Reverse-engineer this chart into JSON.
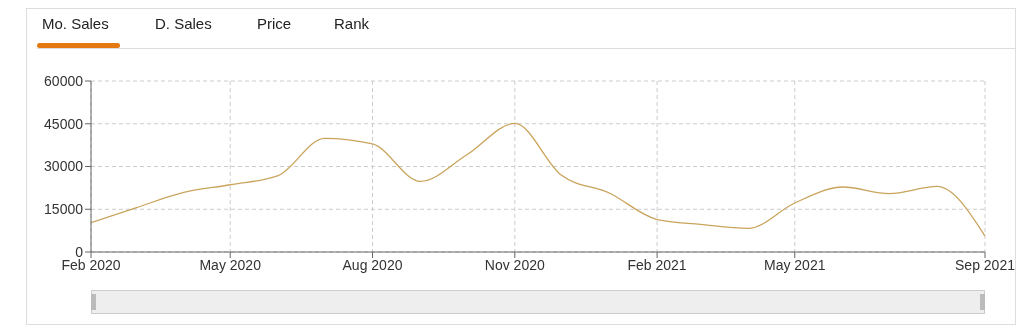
{
  "chart_data": {
    "type": "line",
    "annotations": [
      "Mo. Sales",
      "D. Sales",
      "Price",
      "Rank"
    ],
    "x": [
      "2020-02",
      "2020-03",
      "2020-04",
      "2020-05",
      "2020-06",
      "2020-07",
      "2020-08",
      "2020-09",
      "2020-10",
      "2020-11",
      "2020-12",
      "2021-01",
      "2021-02",
      "2021-03",
      "2021-04",
      "2021-05",
      "2021-06",
      "2021-07",
      "2021-08",
      "2021-09"
    ],
    "series": [
      {
        "color": "#c9a45c",
        "values": [
          10300,
          15500,
          20900,
          23600,
          26800,
          39900,
          37900,
          24800,
          34100,
          45100,
          27000,
          20700,
          11400,
          9700,
          8300,
          17200,
          22800,
          20500,
          23000,
          5600
        ]
      }
    ],
    "xlim": [
      "2020-02",
      "2021-09"
    ],
    "xticks": [
      {
        "value": "2020-02",
        "label": "Feb 2020"
      },
      {
        "value": "2020-05",
        "label": "May 2020"
      },
      {
        "value": "2020-08",
        "label": "Aug 2020"
      },
      {
        "value": "2020-11",
        "label": "Nov 2020"
      },
      {
        "value": "2021-02",
        "label": "Feb 2021"
      },
      {
        "value": "2021-05",
        "label": "May 2021"
      },
      {
        "value": "2021-09",
        "label": "Sep 2021"
      }
    ],
    "ylim": [
      0,
      60000
    ],
    "yticks": [
      0,
      15000,
      30000,
      45000,
      60000
    ],
    "grid": true,
    "marker": "none",
    "line_style": "solid"
  }
}
